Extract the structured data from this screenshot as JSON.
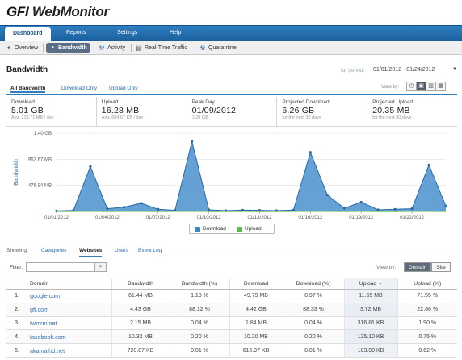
{
  "logo": {
    "prefix": "GFI",
    "name": "WebMonitor"
  },
  "topnav": {
    "tabs": [
      {
        "label": "Dashboard",
        "active": true
      },
      {
        "label": "Reports"
      },
      {
        "label": "Settings"
      },
      {
        "label": "Help"
      }
    ]
  },
  "subnav": {
    "items": [
      {
        "label": "Overview",
        "icon": "overview-icon"
      },
      {
        "label": "Bandwidth",
        "icon": "bandwidth-icon",
        "active": true
      },
      {
        "label": "Activity",
        "icon": "activity-icon"
      },
      {
        "label": "Real-Time Traffic",
        "icon": "realtime-icon"
      },
      {
        "label": "Quarantine",
        "icon": "quarantine-icon"
      }
    ]
  },
  "page": {
    "title": "Bandwidth",
    "period_label": "for period:",
    "period_value": "01/01/2012 - 01/24/2012"
  },
  "view_tabs": {
    "items": [
      "All Bandwidth",
      "Download Only",
      "Upload Only"
    ],
    "active": "All Bandwidth",
    "viewby_label": "View by:"
  },
  "stats": [
    {
      "label": "Download",
      "value": "5.01 GB",
      "sub": "Avg. 213.71 MB / day"
    },
    {
      "label": "Upload",
      "value": "16.28 MB",
      "sub": "Avg. 694.67 KB / day"
    },
    {
      "label": "Peak Day",
      "value": "01/09/2012",
      "sub": "1.28 GB"
    },
    {
      "label": "Projected Download",
      "value": "6.26 GB",
      "sub": "for the next 30 days"
    },
    {
      "label": "Projected Upload",
      "value": "20.35 MB",
      "sub": "for the next 30 days"
    }
  ],
  "chart_data": {
    "type": "area",
    "ylabel": "Bandwidth",
    "y_ticks": [
      "476.84 MB",
      "953.67 MB",
      "1.40 GB"
    ],
    "y_tick_values": [
      476.84,
      953.67,
      1430.51
    ],
    "ylim": [
      0,
      1430.51
    ],
    "x_tick_labels": [
      "01/01/2012",
      "01/04/2012",
      "01/07/2012",
      "01/10/2012",
      "01/13/2012",
      "01/16/2012",
      "01/19/2012",
      "01/22/2012"
    ],
    "x": [
      "01/01/2012",
      "01/02/2012",
      "01/03/2012",
      "01/04/2012",
      "01/05/2012",
      "01/06/2012",
      "01/07/2012",
      "01/08/2012",
      "01/09/2012",
      "01/10/2012",
      "01/11/2012",
      "01/12/2012",
      "01/13/2012",
      "01/14/2012",
      "01/15/2012",
      "01/16/2012",
      "01/17/2012",
      "01/18/2012",
      "01/19/2012",
      "01/20/2012",
      "01/21/2012",
      "01/22/2012",
      "01/23/2012",
      "01/24/2012"
    ],
    "series": [
      {
        "name": "Download",
        "color": "#3b87c4",
        "values": [
          10,
          20,
          820,
          50,
          80,
          150,
          40,
          20,
          1280,
          30,
          15,
          25,
          20,
          15,
          25,
          1080,
          300,
          60,
          170,
          30,
          40,
          50,
          850,
          100
        ]
      },
      {
        "name": "Upload",
        "color": "#57b947",
        "values": [
          0.5,
          0.6,
          0.9,
          0.5,
          0.6,
          0.7,
          0.5,
          0.6,
          1.2,
          0.5,
          0.4,
          0.6,
          0.5,
          0.4,
          0.6,
          1.0,
          0.7,
          0.5,
          0.6,
          0.5,
          0.5,
          0.6,
          0.9,
          0.5
        ]
      }
    ],
    "grid": true,
    "legend_position": "bottom-center"
  },
  "bottom_tabs": {
    "showing": "Showing:",
    "items": [
      "Categories",
      "Websites",
      "Users",
      "Event Log"
    ],
    "active": "Websites"
  },
  "filter": {
    "label": "Filter:",
    "value": "",
    "viewby_label": "View by:",
    "viewby_options": [
      "Domain",
      "Site"
    ],
    "viewby_active": "Domain"
  },
  "table": {
    "headers": [
      "",
      "Domain",
      "Bandwidth",
      "Bandwidth (%)",
      "Download",
      "Download (%)",
      "Upload",
      "Upload (%)"
    ],
    "sort_indicator": "▼",
    "rows": [
      [
        "1.",
        "google.com",
        "61.44 MB",
        "1.19 %",
        "49.79 MB",
        "0.97 %",
        "11.65 MB",
        "71.55 %"
      ],
      [
        "2.",
        "gfi.com",
        "4.43 GB",
        "88.12 %",
        "4.42 GB",
        "88.33 %",
        "3.72 MB",
        "22.86 %"
      ],
      [
        "3.",
        "fwmrm.net",
        "2.15 MB",
        "0.04 %",
        "1.84 MB",
        "0.04 %",
        "316.81 KB",
        "1.90 %"
      ],
      [
        "4.",
        "facebook.com",
        "10.32 MB",
        "0.20 %",
        "10.20 MB",
        "0.20 %",
        "125.10 KB",
        "0.75 %"
      ],
      [
        "5.",
        "akamaihd.net",
        "720.87 KB",
        "0.01 %",
        "616.97 KB",
        "0.01 %",
        "103.90 KB",
        "0.62 %"
      ]
    ]
  }
}
